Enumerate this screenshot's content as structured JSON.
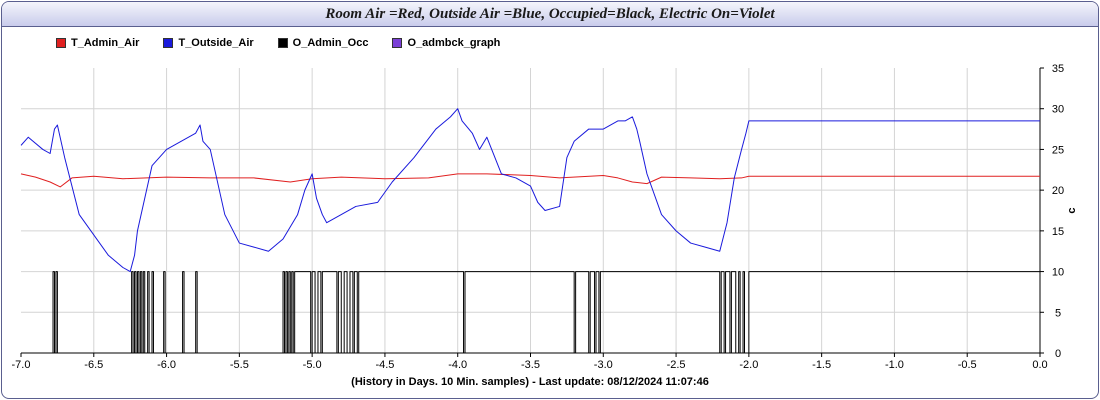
{
  "title": "Room Air =Red, Outside Air =Blue, Occupied=Black, Electric On=Violet",
  "footer": "(History in Days. 10 Min. samples) - Last update: 08/12/2024 11:07:46",
  "chart_data": {
    "type": "line",
    "title": "Room Air =Red, Outside Air =Blue, Occupied=Black, Electric On=Violet",
    "xlabel": "(History in Days. 10 Min. samples) - Last update: 08/12/2024 11:07:46",
    "ylabel": "c",
    "xlim": [
      -7.0,
      0.0
    ],
    "ylim": [
      0,
      35
    ],
    "grid": true,
    "legend_position": "top-left",
    "x_ticks": [
      "-7.0",
      "-6.5",
      "-6.0",
      "-5.5",
      "-5.0",
      "-4.5",
      "-4.0",
      "-3.5",
      "-3.0",
      "-2.5",
      "-2.0",
      "-1.5",
      "-1.0",
      "-0.5",
      "0.0"
    ],
    "y_ticks": [
      "0",
      "5",
      "10",
      "15",
      "20",
      "25",
      "30",
      "35"
    ],
    "series": [
      {
        "name": "T_Admin_Air",
        "color": "#e02020",
        "x": [
          -7.0,
          -6.9,
          -6.8,
          -6.73,
          -6.65,
          -6.5,
          -6.3,
          -6.0,
          -5.7,
          -5.4,
          -5.15,
          -5.0,
          -4.8,
          -4.5,
          -4.2,
          -4.0,
          -3.8,
          -3.5,
          -3.3,
          -3.0,
          -2.9,
          -2.8,
          -2.7,
          -2.6,
          -2.4,
          -2.2,
          -2.05,
          -2.0,
          -1.5,
          -1.0,
          -0.5,
          0.0
        ],
        "y": [
          22.0,
          21.6,
          21.0,
          20.4,
          21.5,
          21.7,
          21.4,
          21.6,
          21.5,
          21.5,
          21.0,
          21.4,
          21.6,
          21.4,
          21.5,
          22.0,
          22.0,
          21.8,
          21.5,
          21.8,
          21.5,
          21.0,
          20.8,
          21.6,
          21.5,
          21.4,
          21.5,
          21.7,
          21.7,
          21.7,
          21.7,
          21.7
        ]
      },
      {
        "name": "T_Outside_Air",
        "color": "#1a1adc",
        "x": [
          -7.0,
          -6.95,
          -6.85,
          -6.8,
          -6.77,
          -6.75,
          -6.7,
          -6.6,
          -6.4,
          -6.3,
          -6.25,
          -6.22,
          -6.2,
          -6.1,
          -6.0,
          -5.9,
          -5.8,
          -5.77,
          -5.75,
          -5.7,
          -5.6,
          -5.5,
          -5.4,
          -5.3,
          -5.2,
          -5.1,
          -5.05,
          -5.0,
          -4.97,
          -4.93,
          -4.9,
          -4.8,
          -4.7,
          -4.55,
          -4.45,
          -4.3,
          -4.15,
          -4.05,
          -4.0,
          -3.97,
          -3.9,
          -3.85,
          -3.8,
          -3.7,
          -3.6,
          -3.5,
          -3.45,
          -3.4,
          -3.3,
          -3.25,
          -3.2,
          -3.1,
          -3.0,
          -2.9,
          -2.85,
          -2.8,
          -2.77,
          -2.75,
          -2.7,
          -2.6,
          -2.5,
          -2.4,
          -2.3,
          -2.2,
          -2.15,
          -2.1,
          -2.05,
          -2.02,
          -2.0,
          -1.5,
          -1.0,
          -0.5,
          0.0
        ],
        "y": [
          25.5,
          26.5,
          25.0,
          24.5,
          27.5,
          28.0,
          24.0,
          17.0,
          12.0,
          10.5,
          10.0,
          12.0,
          15.0,
          23.0,
          25.0,
          26.0,
          27.0,
          28.0,
          26.0,
          25.0,
          17.0,
          13.5,
          13.0,
          12.5,
          14.0,
          17.0,
          20.0,
          22.0,
          19.0,
          17.0,
          16.0,
          17.0,
          18.0,
          18.5,
          21.0,
          24.0,
          27.5,
          29.0,
          30.0,
          28.5,
          27.0,
          25.0,
          26.5,
          22.0,
          21.5,
          20.5,
          18.5,
          17.5,
          18.0,
          24.0,
          26.0,
          27.5,
          27.5,
          28.5,
          28.5,
          29.0,
          27.5,
          26.0,
          22.0,
          17.0,
          15.0,
          13.5,
          13.0,
          12.5,
          16.0,
          21.5,
          25.0,
          27.0,
          28.5,
          28.5,
          28.5,
          28.5,
          28.5
        ]
      },
      {
        "name": "O_Admin_Occ",
        "color": "#000000",
        "x": [
          -7.0,
          -6.78,
          -6.78,
          -6.77,
          -6.77,
          -6.76,
          -6.76,
          -6.75,
          -6.75,
          -6.24,
          -6.24,
          -6.23,
          -6.23,
          -6.22,
          -6.22,
          -6.21,
          -6.21,
          -6.2,
          -6.2,
          -6.19,
          -6.19,
          -6.18,
          -6.18,
          -6.17,
          -6.17,
          -6.16,
          -6.16,
          -6.15,
          -6.15,
          -6.13,
          -6.13,
          -6.12,
          -6.12,
          -6.1,
          -6.1,
          -6.09,
          -6.09,
          -6.02,
          -6.02,
          -6.01,
          -6.01,
          -5.89,
          -5.89,
          -5.88,
          -5.88,
          -5.8,
          -5.8,
          -5.79,
          -5.79,
          -5.2,
          -5.2,
          -5.19,
          -5.19,
          -5.18,
          -5.18,
          -5.17,
          -5.17,
          -5.16,
          -5.16,
          -5.15,
          -5.15,
          -5.14,
          -5.14,
          -5.13,
          -5.13,
          -5.12,
          -5.12,
          -5.01,
          -5.01,
          -5.0,
          -5.0,
          -4.98,
          -4.98,
          -4.96,
          -4.96,
          -4.94,
          -4.94,
          -4.93,
          -4.93,
          -4.83,
          -4.83,
          -4.82,
          -4.82,
          -4.8,
          -4.8,
          -4.78,
          -4.78,
          -4.76,
          -4.76,
          -4.74,
          -4.74,
          -4.72,
          -4.72,
          -4.71,
          -4.71,
          -4.69,
          -4.69,
          -4.68,
          -4.68,
          -3.96,
          -3.96,
          -3.95,
          -3.95,
          -3.2,
          -3.2,
          -3.19,
          -3.19,
          -3.1,
          -3.1,
          -3.09,
          -3.09,
          -3.06,
          -3.06,
          -3.05,
          -3.05,
          -3.03,
          -3.03,
          -3.02,
          -3.02,
          -2.2,
          -2.2,
          -2.19,
          -2.19,
          -2.17,
          -2.17,
          -2.16,
          -2.16,
          -2.13,
          -2.13,
          -2.12,
          -2.12,
          -2.09,
          -2.09,
          -2.07,
          -2.07,
          -2.06,
          -2.06,
          -2.04,
          -2.04,
          -2.03,
          -2.03,
          -2.0,
          -2.0,
          0.0
        ],
        "y": [
          0,
          0,
          10,
          10,
          0,
          0,
          10,
          10,
          0,
          0,
          10,
          10,
          0,
          0,
          10,
          10,
          0,
          0,
          10,
          10,
          0,
          0,
          10,
          10,
          0,
          0,
          10,
          10,
          0,
          0,
          10,
          10,
          0,
          0,
          10,
          10,
          0,
          0,
          10,
          10,
          0,
          0,
          10,
          10,
          0,
          0,
          10,
          10,
          0,
          0,
          10,
          10,
          0,
          0,
          10,
          10,
          0,
          0,
          10,
          10,
          0,
          0,
          10,
          10,
          0,
          0,
          10,
          10,
          0,
          0,
          10,
          10,
          0,
          0,
          10,
          10,
          0,
          0,
          10,
          10,
          0,
          0,
          10,
          10,
          0,
          0,
          10,
          10,
          0,
          0,
          10,
          10,
          0,
          0,
          10,
          10,
          0,
          0,
          10,
          10,
          0,
          0,
          10,
          10,
          0,
          0,
          10,
          10,
          0,
          0,
          10,
          10,
          0,
          0,
          10,
          10,
          0,
          0,
          10,
          10,
          0,
          0,
          10,
          10,
          0,
          0,
          10,
          10,
          0,
          0,
          10,
          10,
          0,
          0,
          10,
          10,
          0,
          0,
          10,
          10,
          0,
          0,
          10,
          10
        ]
      },
      {
        "name": "O_admbck_graph",
        "color": "#7a3fd6",
        "x": [],
        "y": []
      }
    ]
  }
}
